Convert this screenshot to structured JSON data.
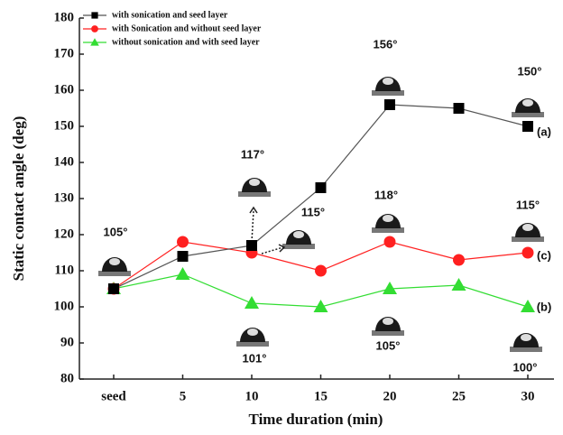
{
  "chart_data": {
    "type": "line",
    "y_label": "Static contact angle (deg)",
    "x_label": "Time duration (min)",
    "categories": [
      "seed",
      "5",
      "10",
      "15",
      "20",
      "25",
      "30"
    ],
    "series": [
      {
        "name": "with sonication and seed layer",
        "color": "#000000",
        "line_color": "#555555",
        "marker": "square",
        "values": [
          105,
          114,
          117,
          133,
          156,
          155,
          150
        ]
      },
      {
        "name": "with Sonication and without seed layer",
        "color": "#ff2020",
        "line_color": "#ff2020",
        "marker": "circle",
        "values": [
          105,
          118,
          115,
          110,
          118,
          113,
          115
        ]
      },
      {
        "name": "without sonication and with seed layer",
        "color": "#33dd33",
        "line_color": "#33dd33",
        "marker": "triangle",
        "values": [
          105,
          109,
          101,
          100,
          105,
          106,
          100
        ]
      }
    ],
    "ylim": [
      80,
      180
    ],
    "yticks": [
      80,
      90,
      100,
      110,
      120,
      130,
      140,
      150,
      160,
      170,
      180
    ],
    "annotations": [
      "105°",
      "117°",
      "115°",
      "156°",
      "118°",
      "150°",
      "115°",
      "101°",
      "105°",
      "100°",
      "(a)",
      "(c)",
      "(b)"
    ]
  }
}
